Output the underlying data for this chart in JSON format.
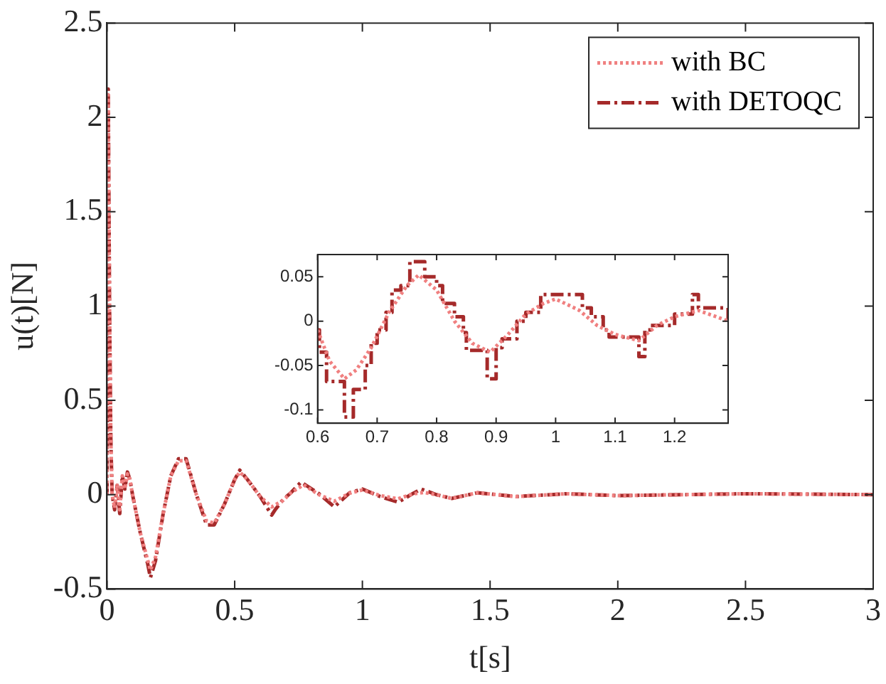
{
  "chart_data": [
    {
      "type": "line",
      "xlabel": "t[s]",
      "ylabel": "u(t)[N]",
      "xlim": [
        0,
        3
      ],
      "ylim": [
        -0.5,
        2.5
      ],
      "xticks": [
        0,
        0.5,
        1,
        1.5,
        2,
        2.5,
        3
      ],
      "yticks": [
        -0.5,
        0,
        0.5,
        1,
        1.5,
        2,
        2.5
      ],
      "grid": false,
      "legend": "top right",
      "marker": "none",
      "series": [
        {
          "name": "with BC",
          "color": "#f08080",
          "line_style": "dotted",
          "x": [
            0,
            0.005,
            0.01,
            0.015,
            0.02,
            0.03,
            0.04,
            0.05,
            0.06,
            0.07,
            0.08,
            0.09,
            0.1,
            0.13,
            0.16,
            0.17,
            0.19,
            0.22,
            0.25,
            0.28,
            0.31,
            0.35,
            0.39,
            0.42,
            0.46,
            0.5,
            0.52,
            0.55,
            0.6,
            0.645,
            0.69,
            0.72,
            0.77,
            0.83,
            0.89,
            0.95,
            1.0,
            1.07,
            1.14,
            1.2,
            1.24,
            1.29,
            1.35,
            1.45,
            1.6,
            1.8,
            2.0,
            2.5,
            3.0
          ],
          "values": [
            0,
            2.12,
            1.0,
            0.3,
            0,
            -0.07,
            0.05,
            -0.08,
            0.1,
            0.03,
            0.11,
            0.08,
            0,
            -0.2,
            -0.35,
            -0.4,
            -0.33,
            -0.1,
            0.1,
            0.18,
            0.18,
            0,
            -0.14,
            -0.15,
            -0.05,
            0.08,
            0.12,
            0.08,
            -0.01,
            -0.065,
            -0.03,
            0.01,
            0.052,
            0,
            -0.035,
            0.008,
            0.025,
            -0.005,
            -0.022,
            0.005,
            0.012,
            0,
            -0.02,
            0.01,
            -0.01,
            0.005,
            -0.005,
            0.005,
            0
          ]
        },
        {
          "name": "with DETOQC",
          "color": "#a52a2a",
          "line_style": "dashed",
          "x": [
            0,
            0.005,
            0.01,
            0.015,
            0.02,
            0.03,
            0.04,
            0.05,
            0.06,
            0.07,
            0.08,
            0.09,
            0.1,
            0.13,
            0.16,
            0.17,
            0.19,
            0.22,
            0.25,
            0.28,
            0.31,
            0.35,
            0.39,
            0.42,
            0.46,
            0.5,
            0.52,
            0.55,
            0.6,
            0.645,
            0.66,
            0.69,
            0.72,
            0.76,
            0.83,
            0.89,
            0.95,
            1.0,
            1.07,
            1.14,
            1.2,
            1.23,
            1.29,
            1.35,
            1.45,
            1.6,
            1.8,
            2.0,
            2.5,
            3.0
          ],
          "values": [
            0,
            2.15,
            1.0,
            0.3,
            0,
            -0.08,
            0.05,
            -0.1,
            0.1,
            0.03,
            0.12,
            0.08,
            0,
            -0.2,
            -0.37,
            -0.44,
            -0.35,
            -0.1,
            0.1,
            0.19,
            0.19,
            0,
            -0.16,
            -0.16,
            -0.05,
            0.08,
            0.13,
            0.08,
            -0.01,
            -0.108,
            -0.077,
            -0.025,
            0.01,
            0.067,
            0.005,
            -0.065,
            0.01,
            0.03,
            -0.01,
            -0.04,
            0.008,
            0.03,
            0,
            -0.02,
            0.01,
            -0.01,
            0.005,
            -0.005,
            0.005,
            0
          ]
        }
      ]
    },
    {
      "type": "line",
      "xlim": [
        0.6,
        1.29
      ],
      "ylim": [
        -0.115,
        0.075
      ],
      "xticks": [
        0.6,
        0.7,
        0.8,
        0.9,
        1,
        1.1,
        1.2
      ],
      "yticks": [
        -0.1,
        -0.05,
        0,
        0.05
      ],
      "grid": false,
      "marker": "none",
      "series": [
        {
          "color": "#f08080",
          "line_style": "dotted",
          "x": [
            0.6,
            0.62,
            0.645,
            0.665,
            0.69,
            0.72,
            0.75,
            0.77,
            0.8,
            0.83,
            0.86,
            0.89,
            0.92,
            0.95,
            0.98,
            1.0,
            1.04,
            1.07,
            1.1,
            1.14,
            1.17,
            1.2,
            1.24,
            1.27,
            1.29
          ],
          "values": [
            -0.01,
            -0.045,
            -0.065,
            -0.055,
            -0.03,
            0.01,
            0.04,
            0.052,
            0.035,
            0,
            -0.025,
            -0.035,
            -0.015,
            0.008,
            0.02,
            0.025,
            0.012,
            -0.005,
            -0.015,
            -0.022,
            -0.005,
            0.005,
            0.012,
            0.005,
            0
          ]
        },
        {
          "type": "step",
          "color": "#a52a2a",
          "line_style": "dashed",
          "x": [
            0.6,
            0.603,
            0.615,
            0.645,
            0.66,
            0.68,
            0.69,
            0.7,
            0.715,
            0.725,
            0.74,
            0.755,
            0.78,
            0.8,
            0.81,
            0.83,
            0.845,
            0.85,
            0.885,
            0.9,
            0.91,
            0.935,
            0.95,
            0.975,
            1.045,
            1.06,
            1.08,
            1.09,
            1.14,
            1.15,
            1.16,
            1.2,
            1.23,
            1.24,
            1.27,
            1.29
          ],
          "values": [
            -0.01,
            -0.035,
            -0.068,
            -0.108,
            -0.077,
            -0.05,
            -0.025,
            -0.01,
            0.01,
            0.035,
            0.04,
            0.067,
            0.05,
            0.04,
            0.02,
            0.005,
            -0.013,
            -0.033,
            -0.065,
            -0.03,
            -0.02,
            0,
            0.01,
            0.03,
            0.015,
            0.005,
            -0.01,
            -0.018,
            -0.04,
            -0.01,
            -0.005,
            0.008,
            0.03,
            0.015,
            0.015,
            0
          ]
        }
      ]
    }
  ]
}
